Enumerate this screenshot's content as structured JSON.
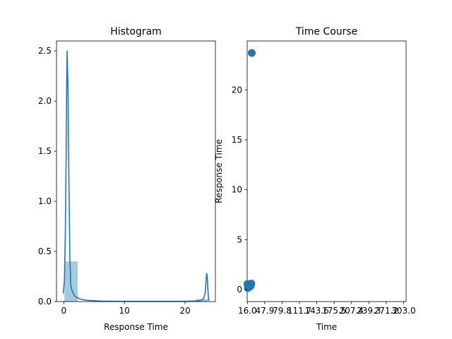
{
  "chart_data": [
    {
      "type": "bar",
      "title": "Histogram",
      "xlabel": "Response Time",
      "ylabel": "",
      "xlim": [
        -1.2,
        25
      ],
      "ylim": [
        0,
        2.6
      ],
      "x_ticks": [
        0,
        10,
        20
      ],
      "x_tick_labels": [
        "0",
        "10",
        "20"
      ],
      "y_ticks": [
        0.0,
        0.5,
        1.0,
        1.5,
        2.0,
        2.5
      ],
      "y_tick_labels": [
        "0.0",
        "0.5",
        "1.0",
        "1.5",
        "2.0",
        "2.5"
      ],
      "bins": [
        {
          "start": 0.1,
          "end": 2.3,
          "value": 0.4
        },
        {
          "start": 21.8,
          "end": 24.0,
          "value": 0.025
        }
      ],
      "kde": {
        "x": [
          -0.1,
          0.1,
          0.25,
          0.4,
          0.5,
          0.55,
          0.7,
          0.85,
          1.0,
          1.15,
          1.3,
          1.5,
          1.75,
          2.0,
          2.5,
          3.0,
          4.0,
          5.0,
          6.0,
          8.0,
          10.0,
          12.0,
          14.0,
          16.0,
          18.0,
          20.0,
          21.5,
          22.5,
          23.0,
          23.3,
          23.45,
          23.55,
          23.65,
          23.75,
          23.85,
          23.95
        ],
        "y": [
          0.08,
          0.2,
          0.65,
          1.5,
          2.3,
          2.5,
          2.1,
          1.2,
          0.45,
          0.17,
          0.12,
          0.09,
          0.06,
          0.045,
          0.03,
          0.02,
          0.012,
          0.008,
          0.005,
          0.003,
          0.002,
          0.002,
          0.002,
          0.002,
          0.002,
          0.003,
          0.005,
          0.01,
          0.025,
          0.08,
          0.2,
          0.28,
          0.25,
          0.13,
          0.04,
          0.01
        ]
      },
      "color": "#1f77b4"
    },
    {
      "type": "scatter",
      "title": "Time Course",
      "xlabel": "Time",
      "ylabel": "Response Time",
      "xlim": [
        14.5,
        1108
      ],
      "ylim": [
        -1.2,
        24.9
      ],
      "x_ticks": [
        16.0,
        47.9,
        79.8,
        111.7,
        143.6,
        175.5,
        207.4,
        239.3,
        271.2,
        303.0
      ],
      "x_tick_labels": [
        "16.0",
        "47.9",
        "79.8",
        "111.7",
        "143.6",
        "175.5",
        "207.4",
        "239.3",
        "271.2",
        "303.0"
      ],
      "x_tick_positions": [
        16.0,
        135.4,
        254.8,
        374.2,
        493.6,
        613.0,
        732.4,
        851.8,
        971.2,
        1090.6
      ],
      "y_ticks": [
        0,
        5,
        10,
        15,
        20
      ],
      "y_tick_labels": [
        "0",
        "5",
        "10",
        "15",
        "20"
      ],
      "points": [
        {
          "x": 16.0,
          "y": 0.55
        },
        {
          "x": 19.0,
          "y": 0.15
        },
        {
          "x": 22.0,
          "y": 0.35
        },
        {
          "x": 25.0,
          "y": 0.45
        },
        {
          "x": 28.0,
          "y": 0.25
        },
        {
          "x": 31.0,
          "y": 0.5
        },
        {
          "x": 34.0,
          "y": 0.3
        },
        {
          "x": 37.0,
          "y": 0.55
        },
        {
          "x": 40.0,
          "y": 0.4
        },
        {
          "x": 43.0,
          "y": 0.6
        },
        {
          "x": 46.0,
          "y": 23.7
        }
      ],
      "color": "#1f77b4"
    }
  ]
}
